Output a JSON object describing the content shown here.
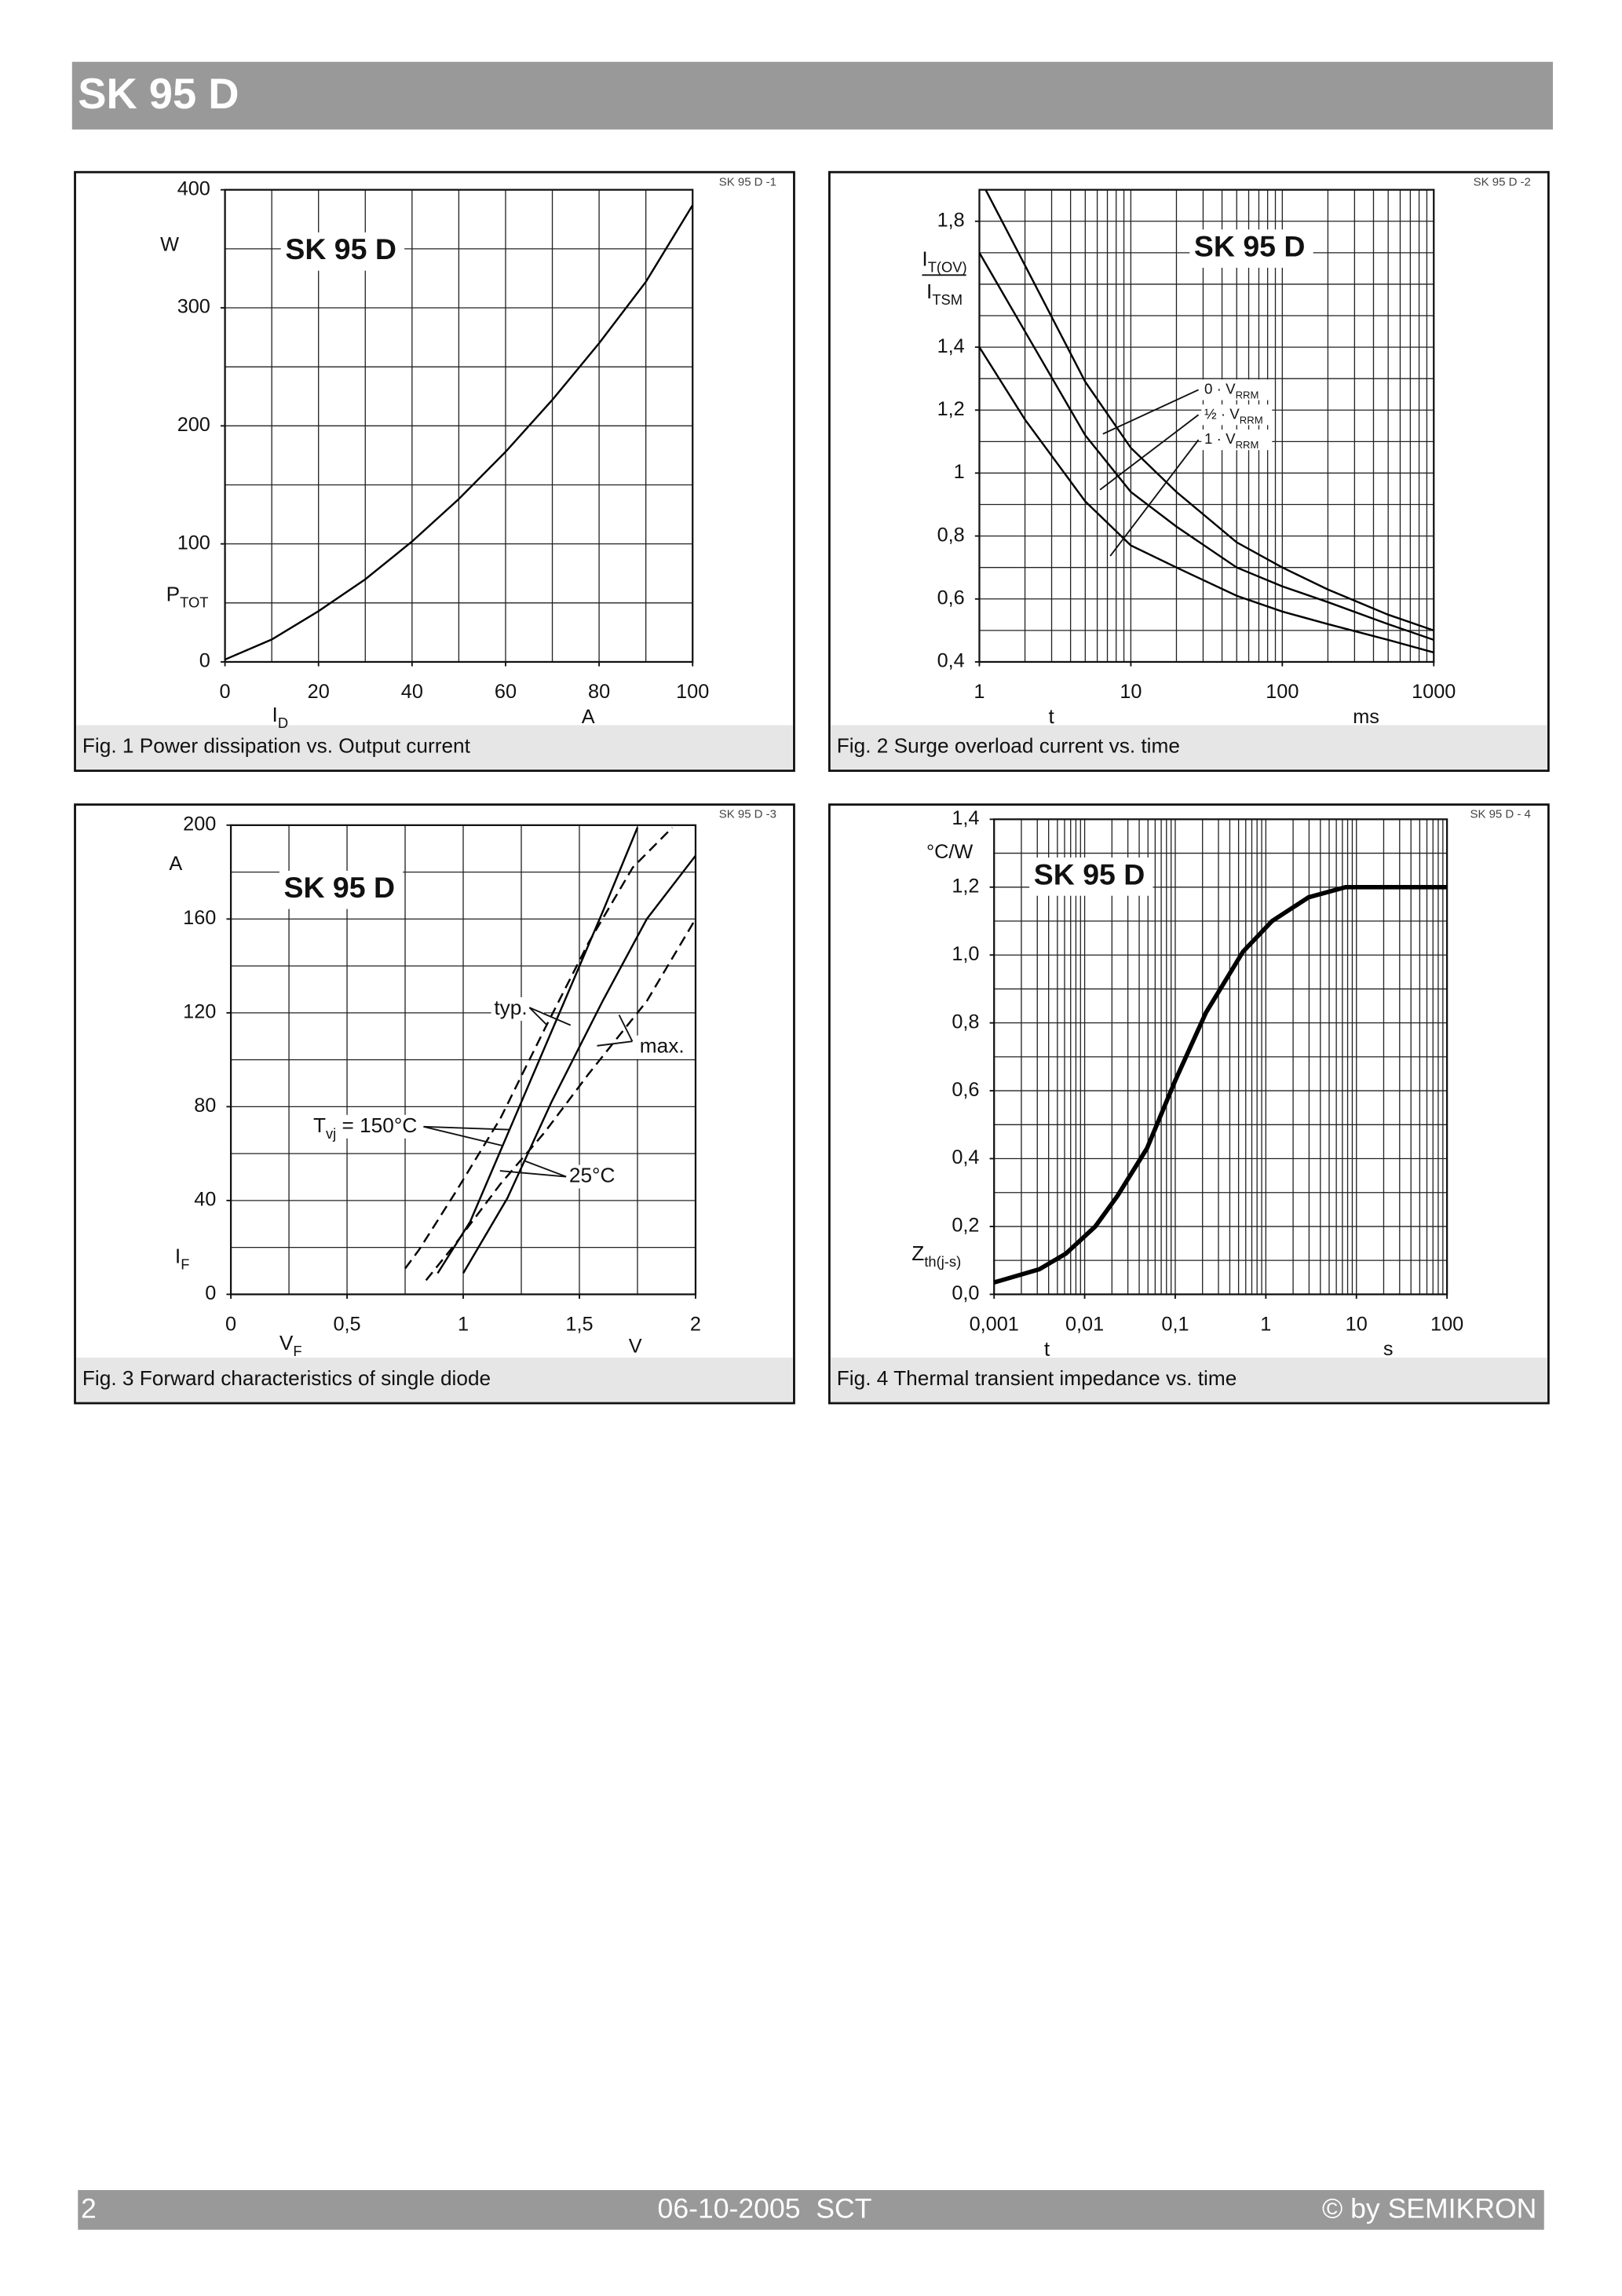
{
  "header": {
    "title": "SK 95 D"
  },
  "chart_data": [
    {
      "type": "line",
      "title": "SK 95 D",
      "subtitle": "SK 95 D -1",
      "caption": "Fig. 1 Power dissipation vs. Output current",
      "xlabel": "I",
      "xlabel_sub": "D",
      "xunit": "A",
      "ylabel": "P",
      "ylabel_sub": "TOT",
      "yunit": "W",
      "xlim": [
        0,
        100
      ],
      "xticks": [
        0,
        20,
        40,
        60,
        80,
        100
      ],
      "xgrid": [
        0,
        10,
        20,
        30,
        40,
        50,
        60,
        70,
        80,
        90,
        100
      ],
      "ylim": [
        0,
        400
      ],
      "yticks": [
        0,
        100,
        200,
        300,
        400
      ],
      "ygrid": [
        0,
        50,
        100,
        150,
        200,
        250,
        300,
        350,
        400
      ],
      "series": [
        {
          "color": "#000000",
          "x": [
            0,
            10,
            20,
            30,
            40,
            50,
            60,
            70,
            80,
            90,
            100
          ],
          "values": [
            2,
            19,
            43,
            70,
            102,
            138,
            178,
            222,
            270,
            322,
            387
          ]
        }
      ]
    },
    {
      "type": "line",
      "title": "SK 95 D",
      "subtitle": "SK 95 D -2",
      "caption": "Fig. 2 Surge overload current vs. time",
      "xlabel": "t",
      "xunit": "ms",
      "ylabel": "I",
      "ylabel_sub": "T(OV)",
      "ylabel2": "I",
      "ylabel2_sub": "TSM",
      "xlog": true,
      "xlim": [
        1,
        1000
      ],
      "xticks": [
        1,
        10,
        100,
        1000
      ],
      "xgrid": [
        1,
        2,
        3,
        4,
        5,
        6,
        7,
        8,
        9,
        10,
        20,
        30,
        40,
        50,
        60,
        70,
        80,
        90,
        100,
        200,
        300,
        400,
        500,
        600,
        700,
        800,
        900,
        1000
      ],
      "ylim": [
        0.4,
        1.9
      ],
      "yticks": [
        {
          "value": 0.4,
          "label": "0,4"
        },
        {
          "value": 0.6,
          "label": "0,6"
        },
        {
          "value": 0.8,
          "label": "0,8"
        },
        1,
        {
          "value": 1.2,
          "label": "1,2"
        },
        {
          "value": 1.4,
          "label": "1,4"
        },
        {
          "value": 1.8,
          "label": "1,8"
        }
      ],
      "ygrid": [
        0.4,
        0.5,
        0.6,
        0.7,
        0.8,
        0.9,
        1,
        1.1,
        1.2,
        1.3,
        1.4,
        1.5,
        1.6,
        1.7,
        1.8,
        1.9
      ],
      "series": [
        {
          "name": "0 · V",
          "name_sub": "RRM",
          "color": "#000000",
          "x": [
            1.1,
            2,
            5,
            10,
            20,
            50,
            100,
            200,
            500,
            1000
          ],
          "values": [
            1.9,
            1.66,
            1.29,
            1.08,
            0.94,
            0.78,
            0.7,
            0.63,
            0.55,
            0.5
          ]
        },
        {
          "name": "½ · V",
          "name_sub": "RRM",
          "color": "#000000",
          "x": [
            1,
            2,
            5,
            10,
            20,
            50,
            100,
            200,
            500,
            1000
          ],
          "values": [
            1.7,
            1.45,
            1.12,
            0.94,
            0.83,
            0.7,
            0.64,
            0.59,
            0.52,
            0.47
          ]
        },
        {
          "name": "1 · V",
          "name_sub": "RRM",
          "color": "#000000",
          "x": [
            1,
            2,
            5,
            10,
            20,
            50,
            100,
            200,
            500,
            1000
          ],
          "values": [
            1.4,
            1.17,
            0.91,
            0.77,
            0.7,
            0.61,
            0.56,
            0.52,
            0.47,
            0.43
          ]
        }
      ]
    },
    {
      "type": "line",
      "title": "SK 95 D",
      "subtitle": "SK 95 D -3",
      "caption": "Fig. 3 Forward characteristics of single diode",
      "xlabel": "V",
      "xlabel_sub": "F",
      "xunit": "V",
      "ylabel": "I",
      "ylabel_sub": "F",
      "yunit": "A",
      "xlim": [
        0,
        2
      ],
      "xticks": [
        0,
        {
          "value": 0.5,
          "label": "0,5"
        },
        1,
        {
          "value": 1.5,
          "label": "1,5"
        },
        2
      ],
      "xgrid": [
        0,
        0.25,
        0.5,
        0.75,
        1,
        1.25,
        1.5,
        1.75,
        2
      ],
      "ylim": [
        0,
        200
      ],
      "yticks": [
        0,
        40,
        80,
        120,
        160,
        200
      ],
      "ygrid": [
        0,
        20,
        40,
        60,
        80,
        100,
        120,
        140,
        160,
        180,
        200
      ],
      "annotations": [
        {
          "text": "typ."
        },
        {
          "text": "max."
        },
        {
          "text": "T",
          "sub": "vj",
          "text2": " = 150°C"
        },
        {
          "text": "25°C"
        }
      ],
      "series": [
        {
          "color": "#000000",
          "x": [
            0.89,
            1.03,
            1.22,
            1.41,
            1.6,
            1.75
          ],
          "values": [
            9,
            31,
            75,
            119,
            163,
            199
          ]
        },
        {
          "color": "#000000",
          "x": [
            1,
            1.19,
            1.38,
            1.6,
            1.79,
            2
          ],
          "values": [
            9,
            41,
            82,
            125,
            160,
            187
          ]
        },
        {
          "color": "#000000",
          "dash": true,
          "x": [
            0.75,
            0.81,
            0.97,
            1.16,
            1.35,
            1.54,
            1.73,
            1.9
          ],
          "values": [
            11,
            19,
            44,
            75,
            113,
            150,
            182,
            199
          ]
        },
        {
          "color": "#000000",
          "dash": true,
          "x": [
            0.84,
            0.97,
            1.16,
            1.35,
            1.54,
            1.79,
            2
          ],
          "values": [
            6,
            22,
            47,
            69,
            94,
            125,
            160
          ]
        }
      ]
    },
    {
      "type": "line",
      "title": "SK 95 D",
      "subtitle": "SK 95 D - 4",
      "caption": "Fig. 4 Thermal transient impedance vs. time",
      "xlabel": "t",
      "xunit": "s",
      "ylabel": "Z",
      "ylabel_sub": "th(j-s)",
      "yunit": "°C/W",
      "xlog": true,
      "xlim": [
        0.001,
        100
      ],
      "xticks": [
        {
          "value": 0.001,
          "label": "0,001"
        },
        {
          "value": 0.01,
          "label": "0,01"
        },
        {
          "value": 0.1,
          "label": "0,1"
        },
        1,
        10,
        100
      ],
      "xgrid": [
        0.001,
        0.002,
        0.003,
        0.004,
        0.005,
        0.006,
        0.007,
        0.008,
        0.009,
        0.01,
        0.02,
        0.03,
        0.04,
        0.05,
        0.06,
        0.07,
        0.08,
        0.09,
        0.1,
        0.2,
        0.3,
        0.4,
        0.5,
        0.6,
        0.7,
        0.8,
        0.9,
        1,
        2,
        3,
        4,
        5,
        6,
        7,
        8,
        9,
        10,
        20,
        30,
        40,
        50,
        60,
        70,
        80,
        90,
        100
      ],
      "ylim": [
        0,
        1.4
      ],
      "yticks": [
        {
          "value": 0,
          "label": "0,0"
        },
        {
          "value": 0.2,
          "label": "0,2"
        },
        {
          "value": 0.4,
          "label": "0,4"
        },
        {
          "value": 0.6,
          "label": "0,6"
        },
        {
          "value": 0.8,
          "label": "0,8"
        },
        {
          "value": 1,
          "label": "1,0"
        },
        {
          "value": 1.2,
          "label": "1,2"
        },
        {
          "value": 1.4,
          "label": "1,4"
        }
      ],
      "ygrid": [
        0,
        0.1,
        0.2,
        0.3,
        0.4,
        0.5,
        0.6,
        0.7,
        0.8,
        0.9,
        1,
        1.1,
        1.2,
        1.3,
        1.4
      ],
      "series": [
        {
          "color": "#000000",
          "width": 3,
          "x": [
            0.001,
            0.00316,
            0.0062,
            0.0131,
            0.023,
            0.0487,
            0.1,
            0.218,
            0.56,
            1.17,
            2.96,
            7.6,
            100
          ],
          "values": [
            0.035,
            0.074,
            0.12,
            0.2,
            0.29,
            0.43,
            0.63,
            0.83,
            1.01,
            1.1,
            1.17,
            1.2,
            1.2
          ]
        }
      ]
    }
  ],
  "footer": {
    "page": "2",
    "date": "06-10-2005  SCT",
    "copyright": "© by SEMIKRON"
  }
}
